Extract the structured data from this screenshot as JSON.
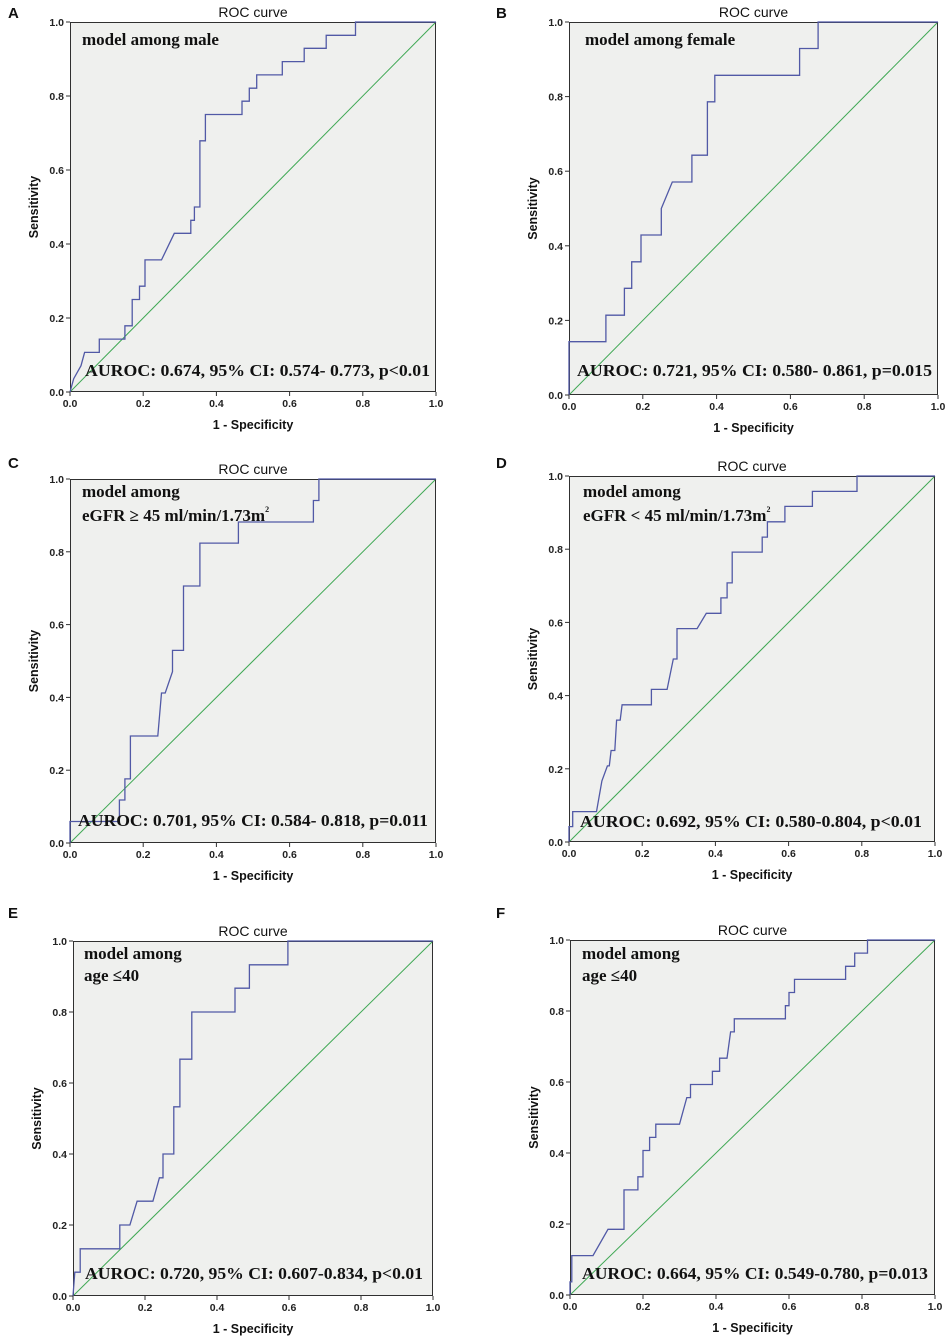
{
  "colors": {
    "roc_curve": "#5159a6",
    "reference_line": "#3fa854",
    "plot_background": "#eff0ee",
    "frame": "#303030"
  },
  "chart_data": [
    {
      "panel": "A",
      "type": "line",
      "title": "ROC curve",
      "xlabel": "1 - Specificity",
      "ylabel": "Sensitivity",
      "xlim": [
        0,
        1
      ],
      "ylim": [
        0,
        1
      ],
      "xticks": [
        "0.0",
        "0.2",
        "0.4",
        "0.6",
        "0.8",
        "1.0"
      ],
      "yticks": [
        "0.0",
        "0.2",
        "0.4",
        "0.6",
        "0.8",
        "1.0"
      ],
      "annotation_lines": [
        "model among male"
      ],
      "auroc_text": "AUROC: 0.674, 95% CI: 0.574- 0.773, p<0.01",
      "series": [
        {
          "points": [
            [
              0,
              0
            ],
            [
              0.01,
              0.036
            ],
            [
              0.03,
              0.071
            ],
            [
              0.04,
              0.107
            ],
            [
              0.08,
              0.107
            ],
            [
              0.08,
              0.143
            ],
            [
              0.15,
              0.143
            ],
            [
              0.15,
              0.179
            ],
            [
              0.17,
              0.179
            ],
            [
              0.17,
              0.25
            ],
            [
              0.19,
              0.25
            ],
            [
              0.19,
              0.286
            ],
            [
              0.205,
              0.286
            ],
            [
              0.205,
              0.357
            ],
            [
              0.25,
              0.357
            ],
            [
              0.285,
              0.429
            ],
            [
              0.33,
              0.429
            ],
            [
              0.33,
              0.464
            ],
            [
              0.34,
              0.464
            ],
            [
              0.34,
              0.5
            ],
            [
              0.355,
              0.5
            ],
            [
              0.355,
              0.679
            ],
            [
              0.37,
              0.679
            ],
            [
              0.37,
              0.75
            ],
            [
              0.47,
              0.75
            ],
            [
              0.47,
              0.786
            ],
            [
              0.49,
              0.786
            ],
            [
              0.49,
              0.821
            ],
            [
              0.51,
              0.821
            ],
            [
              0.51,
              0.857
            ],
            [
              0.58,
              0.857
            ],
            [
              0.58,
              0.893
            ],
            [
              0.64,
              0.893
            ],
            [
              0.64,
              0.929
            ],
            [
              0.7,
              0.929
            ],
            [
              0.7,
              0.964
            ],
            [
              0.78,
              0.964
            ],
            [
              0.78,
              1.0
            ],
            [
              1.0,
              1.0
            ]
          ]
        },
        {
          "points": [
            [
              0,
              0
            ],
            [
              1,
              1
            ]
          ]
        }
      ]
    },
    {
      "panel": "B",
      "type": "line",
      "title": "ROC curve",
      "xlabel": "1 - Specificity",
      "ylabel": "Sensitivity",
      "xlim": [
        0,
        1
      ],
      "ylim": [
        0,
        1
      ],
      "xticks": [
        "0.0",
        "0.2",
        "0.4",
        "0.6",
        "0.8",
        "1.0"
      ],
      "yticks": [
        "0.0",
        "0.2",
        "0.4",
        "0.6",
        "0.8",
        "1.0"
      ],
      "annotation_lines": [
        "model among female"
      ],
      "auroc_text": "AUROC: 0.721, 95% CI: 0.580- 0.861, p=0.015",
      "series": [
        {
          "points": [
            [
              0,
              0
            ],
            [
              0,
              0.143
            ],
            [
              0.1,
              0.143
            ],
            [
              0.1,
              0.214
            ],
            [
              0.15,
              0.214
            ],
            [
              0.15,
              0.286
            ],
            [
              0.17,
              0.286
            ],
            [
              0.17,
              0.357
            ],
            [
              0.195,
              0.357
            ],
            [
              0.195,
              0.429
            ],
            [
              0.25,
              0.429
            ],
            [
              0.25,
              0.5
            ],
            [
              0.28,
              0.571
            ],
            [
              0.333,
              0.571
            ],
            [
              0.333,
              0.643
            ],
            [
              0.375,
              0.643
            ],
            [
              0.375,
              0.786
            ],
            [
              0.395,
              0.786
            ],
            [
              0.395,
              0.857
            ],
            [
              0.625,
              0.857
            ],
            [
              0.625,
              0.929
            ],
            [
              0.675,
              0.929
            ],
            [
              0.675,
              1.0
            ],
            [
              1.0,
              1.0
            ]
          ]
        },
        {
          "points": [
            [
              0,
              0
            ],
            [
              1,
              1
            ]
          ]
        }
      ]
    },
    {
      "panel": "C",
      "type": "line",
      "title": "ROC curve",
      "xlabel": "1 - Specificity",
      "ylabel": "Sensitivity",
      "xlim": [
        0,
        1
      ],
      "ylim": [
        0,
        1
      ],
      "xticks": [
        "0.0",
        "0.2",
        "0.4",
        "0.6",
        "0.8",
        "1.0"
      ],
      "yticks": [
        "0.0",
        "0.2",
        "0.4",
        "0.6",
        "0.8",
        "1.0"
      ],
      "annotation_lines": [
        "model among",
        "eGFR ≥ 45 ml/min/1.73m"
      ],
      "annotation_sup": "2",
      "auroc_text": "AUROC: 0.701, 95% CI: 0.584- 0.818, p=0.011",
      "series": [
        {
          "points": [
            [
              0,
              0
            ],
            [
              0,
              0.059
            ],
            [
              0.135,
              0.059
            ],
            [
              0.135,
              0.118
            ],
            [
              0.15,
              0.118
            ],
            [
              0.15,
              0.176
            ],
            [
              0.165,
              0.176
            ],
            [
              0.165,
              0.294
            ],
            [
              0.24,
              0.294
            ],
            [
              0.25,
              0.412
            ],
            [
              0.26,
              0.412
            ],
            [
              0.28,
              0.471
            ],
            [
              0.28,
              0.529
            ],
            [
              0.31,
              0.529
            ],
            [
              0.31,
              0.706
            ],
            [
              0.355,
              0.706
            ],
            [
              0.355,
              0.824
            ],
            [
              0.46,
              0.824
            ],
            [
              0.46,
              0.882
            ],
            [
              0.665,
              0.882
            ],
            [
              0.665,
              0.941
            ],
            [
              0.68,
              0.941
            ],
            [
              0.68,
              1.0
            ],
            [
              1.0,
              1.0
            ]
          ]
        },
        {
          "points": [
            [
              0,
              0
            ],
            [
              1,
              1
            ]
          ]
        }
      ]
    },
    {
      "panel": "D",
      "type": "line",
      "title": "ROC curve",
      "xlabel": "1 - Specificity",
      "ylabel": "Sensitivity",
      "xlim": [
        0,
        1
      ],
      "ylim": [
        0,
        1
      ],
      "xticks": [
        "0.0",
        "0.2",
        "0.4",
        "0.6",
        "0.8",
        "1.0"
      ],
      "yticks": [
        "0.0",
        "0.2",
        "0.4",
        "0.6",
        "0.8",
        "1.0"
      ],
      "annotation_lines": [
        "model among",
        "eGFR < 45 ml/min/1.73m"
      ],
      "annotation_sup": "2",
      "auroc_text": "AUROC: 0.692, 95% CI: 0.580-0.804, p<0.01",
      "series": [
        {
          "points": [
            [
              0,
              0
            ],
            [
              0,
              0.042
            ],
            [
              0.01,
              0.042
            ],
            [
              0.01,
              0.083
            ],
            [
              0.075,
              0.083
            ],
            [
              0.09,
              0.167
            ],
            [
              0.105,
              0.208
            ],
            [
              0.11,
              0.208
            ],
            [
              0.115,
              0.25
            ],
            [
              0.125,
              0.25
            ],
            [
              0.13,
              0.333
            ],
            [
              0.14,
              0.333
            ],
            [
              0.145,
              0.375
            ],
            [
              0.225,
              0.375
            ],
            [
              0.225,
              0.417
            ],
            [
              0.268,
              0.417
            ],
            [
              0.285,
              0.5
            ],
            [
              0.295,
              0.5
            ],
            [
              0.295,
              0.583
            ],
            [
              0.35,
              0.583
            ],
            [
              0.375,
              0.625
            ],
            [
              0.415,
              0.625
            ],
            [
              0.415,
              0.667
            ],
            [
              0.432,
              0.667
            ],
            [
              0.432,
              0.708
            ],
            [
              0.446,
              0.708
            ],
            [
              0.446,
              0.792
            ],
            [
              0.528,
              0.792
            ],
            [
              0.528,
              0.833
            ],
            [
              0.542,
              0.833
            ],
            [
              0.542,
              0.875
            ],
            [
              0.59,
              0.875
            ],
            [
              0.59,
              0.917
            ],
            [
              0.665,
              0.917
            ],
            [
              0.665,
              0.958
            ],
            [
              0.787,
              0.958
            ],
            [
              0.787,
              1.0
            ],
            [
              1.0,
              1.0
            ]
          ]
        },
        {
          "points": [
            [
              0,
              0
            ],
            [
              1,
              1
            ]
          ]
        }
      ]
    },
    {
      "panel": "E",
      "type": "line",
      "title": "ROC curve",
      "xlabel": "1 - Specificity",
      "ylabel": "Sensitivity",
      "xlim": [
        0,
        1
      ],
      "ylim": [
        0,
        1
      ],
      "xticks": [
        "0.0",
        "0.2",
        "0.4",
        "0.6",
        "0.8",
        "1.0"
      ],
      "yticks": [
        "0.0",
        "0.2",
        "0.4",
        "0.6",
        "0.8",
        "1.0"
      ],
      "annotation_lines": [
        "model among",
        "age ≤40"
      ],
      "auroc_text": "AUROC: 0.720, 95% CI: 0.607-0.834, p<0.01",
      "series": [
        {
          "points": [
            [
              0,
              0
            ],
            [
              0.005,
              0.067
            ],
            [
              0.02,
              0.067
            ],
            [
              0.02,
              0.133
            ],
            [
              0.13,
              0.133
            ],
            [
              0.13,
              0.2
            ],
            [
              0.158,
              0.2
            ],
            [
              0.178,
              0.267
            ],
            [
              0.222,
              0.267
            ],
            [
              0.24,
              0.333
            ],
            [
              0.25,
              0.333
            ],
            [
              0.25,
              0.4
            ],
            [
              0.28,
              0.4
            ],
            [
              0.28,
              0.533
            ],
            [
              0.297,
              0.533
            ],
            [
              0.297,
              0.667
            ],
            [
              0.33,
              0.667
            ],
            [
              0.33,
              0.8
            ],
            [
              0.45,
              0.8
            ],
            [
              0.45,
              0.867
            ],
            [
              0.49,
              0.867
            ],
            [
              0.49,
              0.933
            ],
            [
              0.597,
              0.933
            ],
            [
              0.597,
              1.0
            ],
            [
              1.0,
              1.0
            ]
          ]
        },
        {
          "points": [
            [
              0,
              0
            ],
            [
              1,
              1
            ]
          ]
        }
      ]
    },
    {
      "panel": "F",
      "type": "line",
      "title": "ROC curve",
      "xlabel": "1 - Specificity",
      "ylabel": "Sensitivity",
      "xlim": [
        0,
        1
      ],
      "ylim": [
        0,
        1
      ],
      "xticks": [
        "0.0",
        "0.2",
        "0.4",
        "0.6",
        "0.8",
        "1.0"
      ],
      "yticks": [
        "0.0",
        "0.2",
        "0.4",
        "0.6",
        "0.8",
        "1.0"
      ],
      "annotation_lines": [
        "model among",
        "age ≤40"
      ],
      "auroc_text": "AUROC: 0.664, 95% CI: 0.549-0.780, p=0.013",
      "series": [
        {
          "points": [
            [
              0,
              0
            ],
            [
              0,
              0.037
            ],
            [
              0.005,
              0.037
            ],
            [
              0.005,
              0.111
            ],
            [
              0.063,
              0.111
            ],
            [
              0.104,
              0.185
            ],
            [
              0.148,
              0.185
            ],
            [
              0.148,
              0.296
            ],
            [
              0.186,
              0.296
            ],
            [
              0.186,
              0.333
            ],
            [
              0.2,
              0.333
            ],
            [
              0.2,
              0.407
            ],
            [
              0.218,
              0.407
            ],
            [
              0.218,
              0.444
            ],
            [
              0.235,
              0.444
            ],
            [
              0.235,
              0.481
            ],
            [
              0.3,
              0.481
            ],
            [
              0.32,
              0.556
            ],
            [
              0.33,
              0.556
            ],
            [
              0.33,
              0.593
            ],
            [
              0.39,
              0.593
            ],
            [
              0.39,
              0.63
            ],
            [
              0.41,
              0.63
            ],
            [
              0.41,
              0.667
            ],
            [
              0.43,
              0.667
            ],
            [
              0.44,
              0.741
            ],
            [
              0.45,
              0.741
            ],
            [
              0.45,
              0.778
            ],
            [
              0.59,
              0.778
            ],
            [
              0.59,
              0.815
            ],
            [
              0.6,
              0.815
            ],
            [
              0.6,
              0.852
            ],
            [
              0.615,
              0.852
            ],
            [
              0.615,
              0.889
            ],
            [
              0.755,
              0.889
            ],
            [
              0.755,
              0.926
            ],
            [
              0.78,
              0.926
            ],
            [
              0.78,
              0.963
            ],
            [
              0.815,
              0.963
            ],
            [
              0.815,
              1.0
            ],
            [
              1.0,
              1.0
            ]
          ]
        },
        {
          "points": [
            [
              0,
              0
            ],
            [
              1,
              1
            ]
          ]
        }
      ]
    }
  ]
}
